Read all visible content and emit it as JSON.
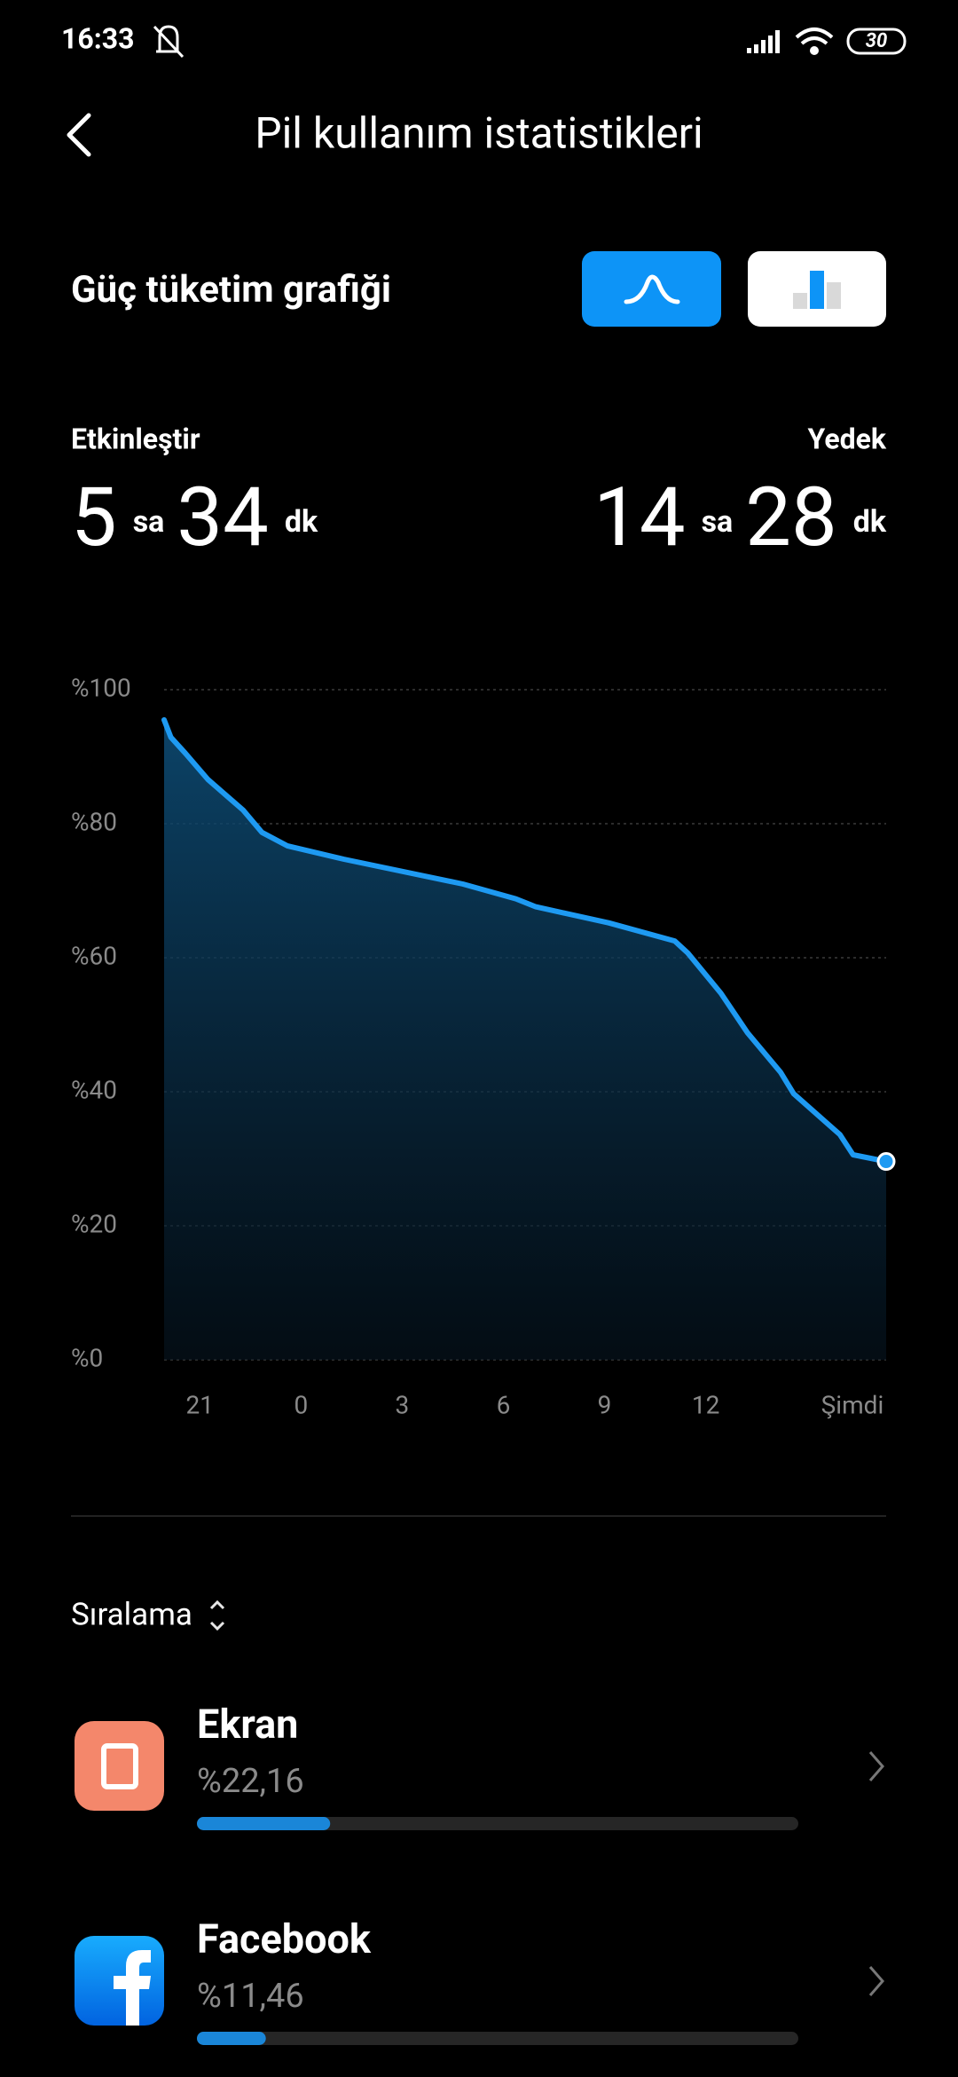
{
  "status_bar": {
    "time": "16:33",
    "battery": 30
  },
  "header": {
    "title": "Pil kullanım istatistikleri"
  },
  "section": {
    "title": "Güç tüketim grafiği"
  },
  "stats": [
    {
      "label": "Etkinleştir",
      "hours": 5,
      "hours_unit": "sa",
      "minutes": 34,
      "minutes_unit": "dk"
    },
    {
      "label": "Yedek",
      "hours": 14,
      "hours_unit": "sa",
      "minutes": 28,
      "minutes_unit": "dk"
    }
  ],
  "chart_data": {
    "type": "area",
    "x": [
      19.94,
      20.14,
      20.57,
      21.24,
      22.29,
      22.84,
      23.59,
      25.27,
      28.8,
      30.37,
      30.96,
      33.12,
      35.08,
      35.47,
      36.45,
      37.24,
      38.22,
      38.61,
      39.98,
      40.37,
      41.35
    ],
    "values": [
      95.5,
      92.9,
      90.5,
      86.6,
      82,
      78.7,
      76.7,
      74.7,
      71,
      68.8,
      67.6,
      65.2,
      62.5,
      60.7,
      54.7,
      48.8,
      42.9,
      39.7,
      33.6,
      30.6,
      29.6
    ],
    "color": "#1e9af2",
    "xlim": [
      19.94,
      41.35
    ],
    "xticks": [
      21,
      {
        "value": 24,
        "label": "0"
      },
      {
        "value": 27,
        "label": "3"
      },
      {
        "value": 30,
        "label": "6"
      },
      {
        "value": 33,
        "label": "9"
      },
      {
        "value": 36,
        "label": "12"
      },
      {
        "value": 40.35,
        "label": "Şimdi"
      }
    ],
    "ylim": [
      0,
      100
    ],
    "yticks": [
      {
        "value": 0,
        "label": "%0"
      },
      {
        "value": 20,
        "label": "%20"
      },
      {
        "value": 40,
        "label": "%40"
      },
      {
        "value": 60,
        "label": "%60"
      },
      {
        "value": 80,
        "label": "%80"
      },
      {
        "value": 100,
        "label": "%100"
      }
    ],
    "grid": true
  },
  "sort_label": "Sıralama",
  "apps": [
    {
      "name": "Ekran",
      "percent": 22.16,
      "percent_label": "%22,16"
    },
    {
      "name": "Facebook",
      "percent": 11.46,
      "percent_label": "%11,46"
    }
  ]
}
